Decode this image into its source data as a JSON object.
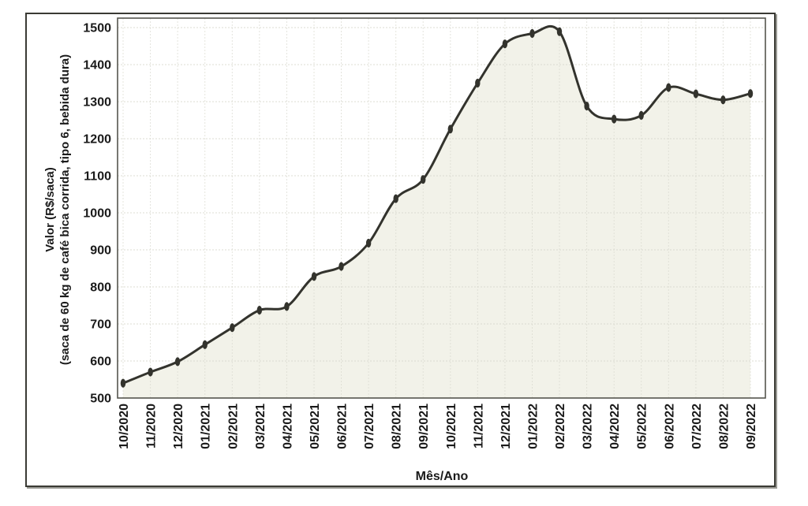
{
  "chart_data": {
    "type": "area",
    "x_title": "Mês/Ano",
    "y_title_line1": "Valor (R$/saca)",
    "y_title_line2": "(saca de 60 kg de café bica corrida, tipo 6, bebida dura)",
    "categories": [
      "10/2020",
      "11/2020",
      "12/2020",
      "01/2021",
      "02/2021",
      "03/2021",
      "04/2021",
      "05/2021",
      "06/2021",
      "07/2021",
      "08/2021",
      "09/2021",
      "10/2021",
      "11/2021",
      "12/2021",
      "01/2022",
      "02/2022",
      "03/2022",
      "04/2022",
      "05/2022",
      "06/2022",
      "07/2022",
      "08/2022",
      "09/2022"
    ],
    "values": [
      540,
      570,
      598,
      644,
      690,
      737,
      747,
      828,
      855,
      918,
      1038,
      1090,
      1226,
      1350,
      1456,
      1484,
      1489,
      1288,
      1253,
      1263,
      1338,
      1321,
      1305,
      1322
    ],
    "ylim": [
      500,
      1500
    ],
    "ytick_step": 100,
    "grid": "on",
    "legend": "none",
    "colors": {
      "line": "#33332d",
      "marker": "#33332d",
      "area_fill": "#f2f2e9",
      "grid": "#d9d9cf",
      "plot_border": "#55554e",
      "text": "#1a1a1a"
    }
  }
}
